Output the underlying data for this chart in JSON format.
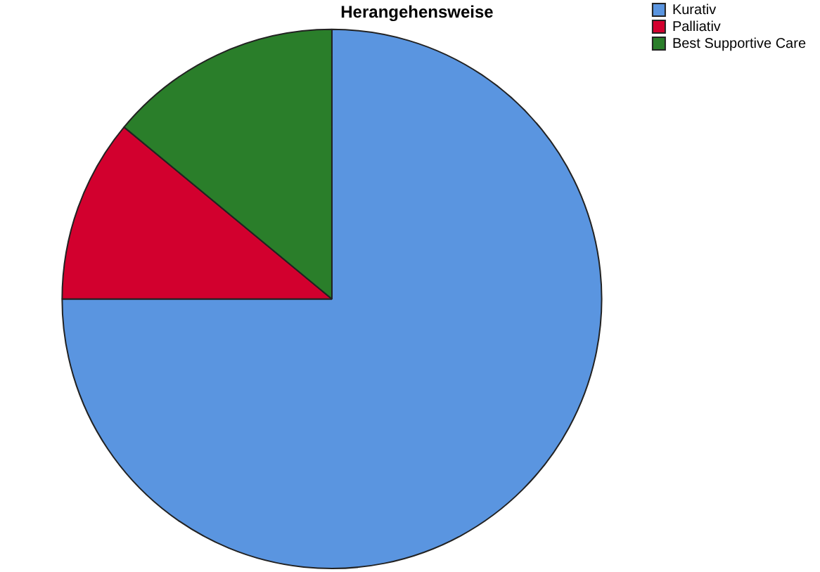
{
  "chart_data": {
    "type": "pie",
    "title": "Herangehensweise",
    "categories": [
      "Kurativ",
      "Palliativ",
      "Best Supportive Care"
    ],
    "values": [
      75,
      11,
      14
    ],
    "colors": [
      "#5a95e0",
      "#d2002e",
      "#2a7e2a"
    ],
    "legend": "top right"
  }
}
